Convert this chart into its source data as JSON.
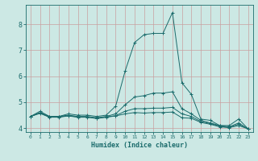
{
  "xlabel": "Humidex (Indice chaleur)",
  "background_color": "#cce8e4",
  "grid_color_v": "#d4b0b0",
  "grid_color_h": "#d4b0b0",
  "line_color": "#1a6b6b",
  "xlim": [
    -0.5,
    23.5
  ],
  "ylim": [
    3.85,
    8.75
  ],
  "yticks": [
    4,
    5,
    6,
    7,
    8
  ],
  "xticks": [
    0,
    1,
    2,
    3,
    4,
    5,
    6,
    7,
    8,
    9,
    10,
    11,
    12,
    13,
    14,
    15,
    16,
    17,
    18,
    19,
    20,
    21,
    22,
    23
  ],
  "series": [
    [
      4.45,
      4.65,
      4.45,
      4.45,
      4.55,
      4.5,
      4.5,
      4.45,
      4.5,
      4.85,
      6.2,
      7.3,
      7.6,
      7.65,
      7.65,
      8.45,
      5.75,
      5.3,
      4.35,
      4.3,
      4.1,
      4.1,
      4.35,
      3.97
    ],
    [
      4.45,
      4.6,
      4.45,
      4.45,
      4.5,
      4.45,
      4.45,
      4.4,
      4.45,
      4.55,
      4.9,
      5.2,
      5.25,
      5.35,
      5.35,
      5.4,
      4.75,
      4.55,
      4.3,
      4.2,
      4.1,
      4.05,
      4.2,
      3.97
    ],
    [
      4.45,
      4.58,
      4.43,
      4.43,
      4.48,
      4.43,
      4.43,
      4.38,
      4.43,
      4.48,
      4.65,
      4.75,
      4.75,
      4.77,
      4.77,
      4.8,
      4.55,
      4.45,
      4.25,
      4.18,
      4.07,
      4.03,
      4.15,
      3.97
    ],
    [
      4.45,
      4.57,
      4.42,
      4.42,
      4.47,
      4.42,
      4.42,
      4.37,
      4.42,
      4.47,
      4.55,
      4.6,
      4.58,
      4.6,
      4.6,
      4.62,
      4.4,
      4.38,
      4.22,
      4.15,
      4.05,
      4.02,
      4.1,
      3.97
    ]
  ]
}
